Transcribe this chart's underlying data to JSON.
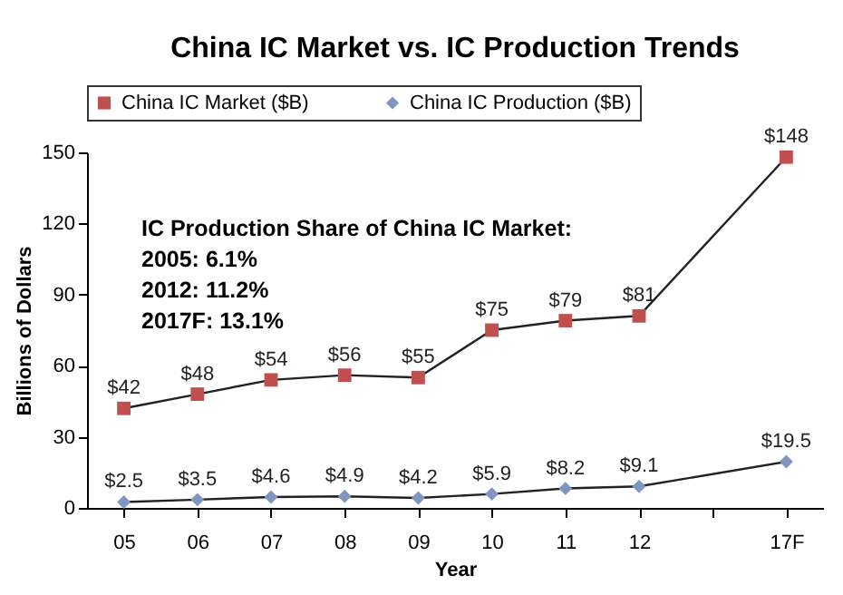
{
  "chart_data": {
    "type": "line",
    "title": "China IC Market vs. IC Production Trends",
    "xlabel": "Year",
    "ylabel": "Billions of Dollars",
    "categories": [
      "05",
      "06",
      "07",
      "08",
      "09",
      "10",
      "11",
      "12",
      null,
      "17F"
    ],
    "series": [
      {
        "name": "China IC Market ($B)",
        "color": "#c0504d",
        "marker": "square",
        "values": [
          42,
          48,
          54,
          56,
          55,
          75,
          79,
          81,
          null,
          148
        ],
        "value_labels": [
          "$42",
          "$48",
          "$54",
          "$56",
          "$55",
          "$75",
          "$79",
          "$81",
          null,
          "$148"
        ]
      },
      {
        "name": "China IC Production ($B)",
        "color": "#7f96c0",
        "marker": "diamond",
        "values": [
          2.5,
          3.5,
          4.6,
          4.9,
          4.2,
          5.9,
          8.2,
          9.1,
          null,
          19.5
        ],
        "value_labels": [
          "$2.5",
          "$3.5",
          "$4.6",
          "$4.9",
          "$4.2",
          "$5.9",
          "$8.2",
          "$9.1",
          null,
          "$19.5"
        ]
      }
    ],
    "ylim": [
      0,
      150
    ],
    "yticks": [
      0,
      30,
      60,
      90,
      120,
      150
    ],
    "grid": false,
    "legend": "top",
    "line_style": "solid",
    "annotations": [
      "IC Production Share of China IC Market:",
      "2005: 6.1%",
      "2012: 11.2%",
      "2017F: 13.1%"
    ]
  }
}
